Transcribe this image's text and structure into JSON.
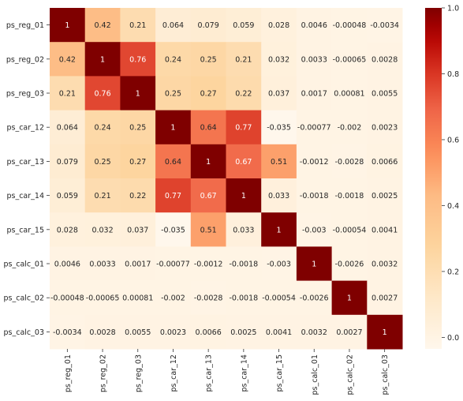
{
  "chart_data": {
    "type": "heatmap",
    "title": "",
    "xlabel": "",
    "ylabel": "",
    "labels": [
      "ps_reg_01",
      "ps_reg_02",
      "ps_reg_03",
      "ps_car_12",
      "ps_car_13",
      "ps_car_14",
      "ps_car_15",
      "ps_calc_01",
      "ps_calc_02",
      "ps_calc_03"
    ],
    "values": [
      [
        1,
        0.42,
        0.21,
        0.064,
        0.079,
        0.059,
        0.028,
        0.0046,
        -0.00048,
        -0.0034
      ],
      [
        0.42,
        1,
        0.76,
        0.24,
        0.25,
        0.21,
        0.032,
        0.0033,
        -0.00065,
        0.0028
      ],
      [
        0.21,
        0.76,
        1,
        0.25,
        0.27,
        0.22,
        0.037,
        0.0017,
        0.00081,
        0.0055
      ],
      [
        0.064,
        0.24,
        0.25,
        1,
        0.64,
        0.77,
        -0.035,
        -0.00077,
        -0.002,
        0.0023
      ],
      [
        0.079,
        0.25,
        0.27,
        0.64,
        1,
        0.67,
        0.51,
        -0.0012,
        -0.0028,
        0.0066
      ],
      [
        0.059,
        0.21,
        0.22,
        0.77,
        0.67,
        1,
        0.033,
        -0.0018,
        -0.0018,
        0.0025
      ],
      [
        0.028,
        0.032,
        0.037,
        -0.035,
        0.51,
        0.033,
        1,
        -0.003,
        -0.00054,
        0.0041
      ],
      [
        0.0046,
        0.0033,
        0.0017,
        -0.00077,
        -0.0012,
        -0.0018,
        -0.003,
        1,
        -0.0026,
        0.0032
      ],
      [
        -0.00048,
        -0.00065,
        0.00081,
        -0.002,
        -0.0028,
        -0.0018,
        -0.00054,
        -0.0026,
        1,
        0.0027
      ],
      [
        -0.0034,
        0.0028,
        0.0055,
        0.0023,
        0.0066,
        0.0025,
        0.0041,
        0.0032,
        0.0027,
        1
      ]
    ],
    "color_range": [
      -0.035,
      1
    ],
    "colormap": "OrRd",
    "colorbar_ticks": [
      0.0,
      0.2,
      0.4,
      0.6,
      0.8,
      1.0
    ],
    "colorbar_tick_labels": [
      "0.0",
      "0.2",
      "0.4",
      "0.6",
      "0.8",
      "1.0"
    ],
    "annotations": true
  }
}
